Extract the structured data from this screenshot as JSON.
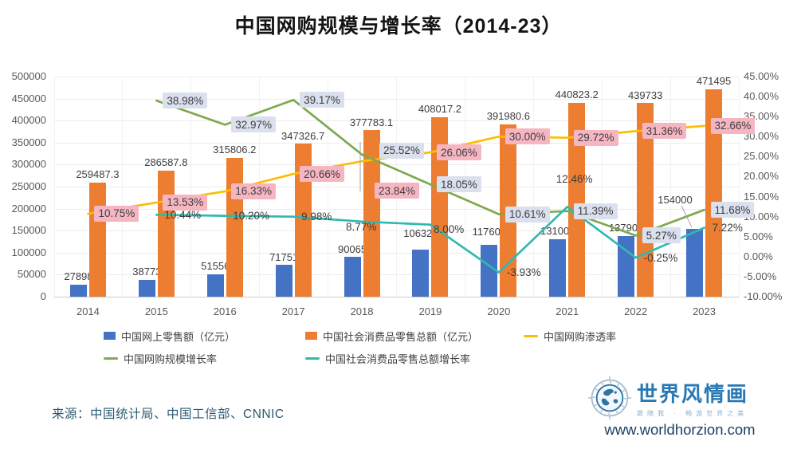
{
  "title": "中国网购规模与增长率（2014-23）",
  "chart_data": {
    "type": "combo-bar-line-dual-axis",
    "categories": [
      "2014",
      "2015",
      "2016",
      "2017",
      "2018",
      "2019",
      "2020",
      "2021",
      "2022",
      "2023"
    ],
    "bar_series": [
      {
        "id": "online_retail",
        "name": "中国网上零售额（亿元）",
        "color": "#4472C4",
        "axis": "left",
        "values": [
          27898,
          38773,
          51556,
          71751,
          90065,
          106324,
          117600,
          131000,
          137900,
          154000
        ],
        "value_labels": [
          "27898",
          "38773",
          "51556",
          "71751",
          "90065",
          "106324",
          "117600",
          "131000",
          "137900",
          "154000"
        ]
      },
      {
        "id": "total_retail",
        "name": "中国社会消费品零售总额（亿元）",
        "color": "#ED7D31",
        "axis": "left",
        "values": [
          259487.3,
          286587.8,
          315806.2,
          347326.7,
          377783.1,
          408017.2,
          391980.6,
          440823.2,
          439733,
          471495
        ],
        "value_labels": [
          "259487.3",
          "286587.8",
          "315806.2",
          "347326.7",
          "377783.1",
          "408017.2",
          "391980.6",
          "440823.2",
          "439733",
          "471495"
        ]
      }
    ],
    "line_series": [
      {
        "id": "penetration",
        "name": "中国网购渗透率",
        "color": "#FBBE04",
        "axis": "right",
        "label_bg": "#F5B6C2",
        "values": [
          10.75,
          13.53,
          16.33,
          20.66,
          23.84,
          26.06,
          30.0,
          29.72,
          31.36,
          32.66
        ],
        "value_labels": [
          "10.75%",
          "13.53%",
          "16.33%",
          "20.66%",
          "23.84%",
          "26.06%",
          "30.00%",
          "29.72%",
          "31.36%",
          "32.66%"
        ]
      },
      {
        "id": "online_growth",
        "name": "中国网购规模增长率",
        "color": "#7EA94E",
        "axis": "right",
        "label_bg": "#DAE0ED",
        "values": [
          null,
          38.98,
          32.97,
          39.17,
          25.52,
          18.05,
          10.61,
          11.39,
          5.27,
          11.68
        ],
        "value_labels": [
          null,
          "38.98%",
          "32.97%",
          "39.17%",
          "25.52%",
          "18.05%",
          "10.61%",
          "11.39%",
          "5.27%",
          "11.68%"
        ]
      },
      {
        "id": "retail_growth",
        "name": "中国社会消费品零售总额增长率",
        "color": "#31B8AF",
        "axis": "right",
        "label_bg": null,
        "values": [
          null,
          10.44,
          10.2,
          9.98,
          8.77,
          8.0,
          -3.93,
          12.46,
          -0.25,
          7.22
        ],
        "value_labels": [
          null,
          "10.44%",
          "10.20%",
          "9.98%",
          "8.77%",
          "8.00%",
          "-3.93%",
          "12.46%",
          "-0.25%",
          "7.22%"
        ]
      }
    ],
    "left_axis": {
      "min": 0,
      "max": 500000,
      "tick_labels": [
        "500000",
        "450000",
        "400000",
        "350000",
        "300000",
        "250000",
        "200000",
        "150000",
        "100000",
        "50000",
        "0"
      ]
    },
    "right_axis": {
      "min": -10,
      "max": 45,
      "tick_labels": [
        "45.00%",
        "40.00%",
        "35.00%",
        "30.00%",
        "25.00%",
        "20.00%",
        "15.00%",
        "10.00%",
        "5.00%",
        "0.00%",
        "-5.00%",
        "-10.00%"
      ]
    },
    "grid": "horizontal light + faint vertical category separators",
    "legend_position": "bottom, two rows"
  },
  "source": "来源：中国统计局、中国工信部、CNNIC",
  "logo": {
    "brand": "世界风情画",
    "tagline": "跟随我 · 畅游世界之美",
    "website": "www.worldhorzion.com"
  }
}
